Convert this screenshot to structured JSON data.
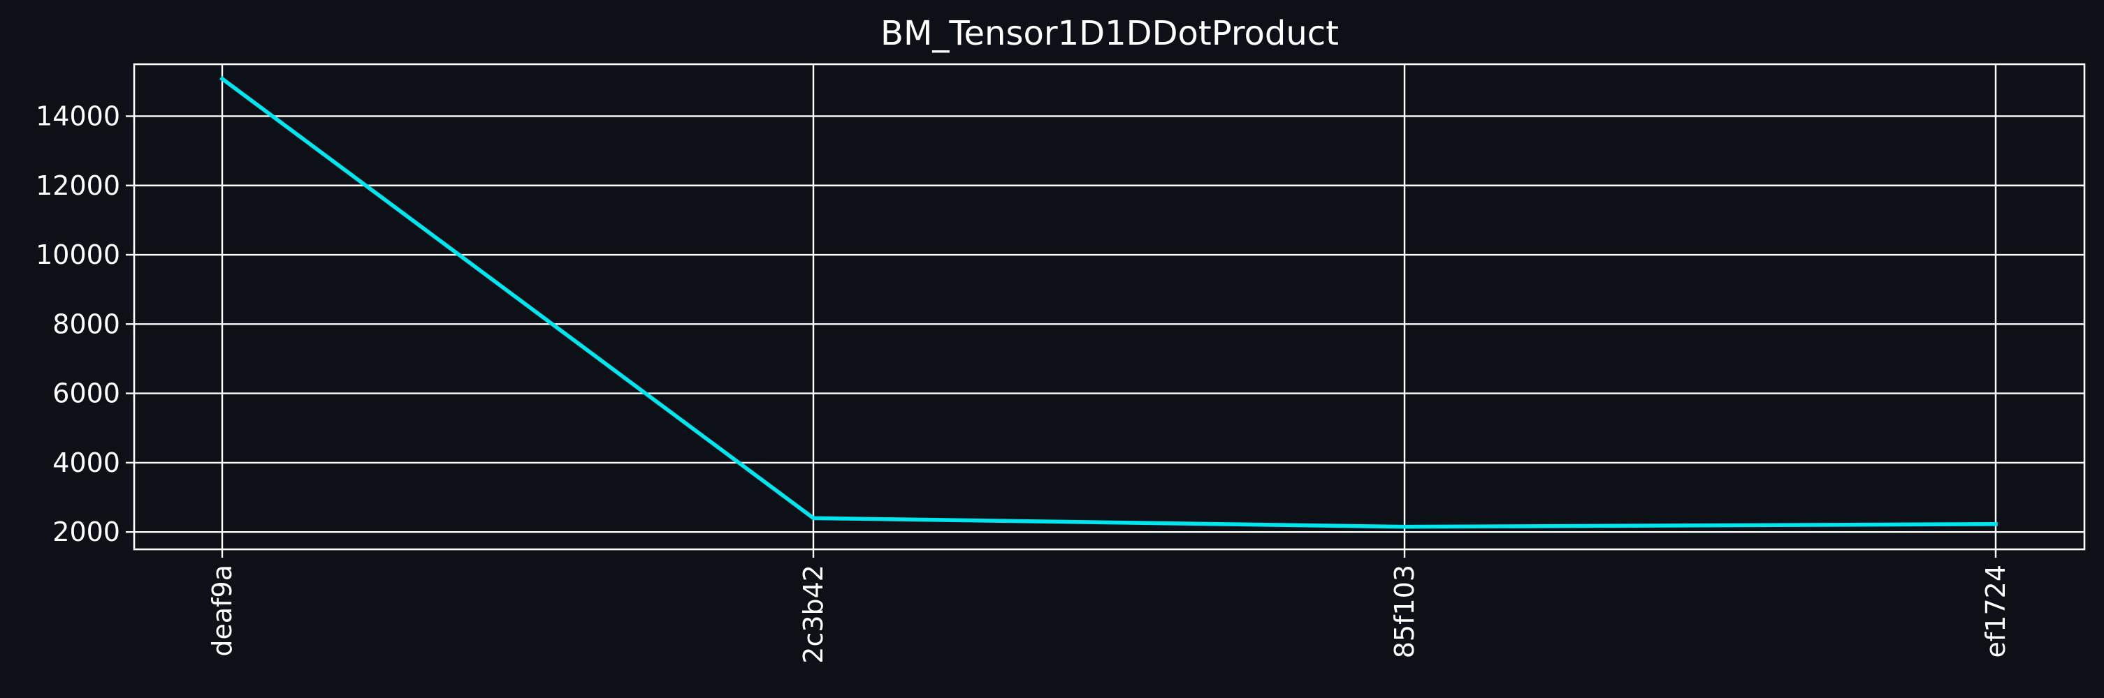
{
  "chart_data": {
    "type": "line",
    "title": "BM_Tensor1D1DDotProduct",
    "xlabel": "",
    "ylabel": "",
    "categories": [
      "deaf9a",
      "2c3b42",
      "85f103",
      "ef1724"
    ],
    "series": [
      {
        "values": [
          15080,
          2400,
          2150,
          2230
        ],
        "color": "#00e5ee"
      }
    ],
    "ylim": [
      1500,
      15500
    ],
    "yticks": [
      2000,
      4000,
      6000,
      8000,
      10000,
      12000,
      14000
    ],
    "grid": true,
    "legend": "none",
    "x_tick_rotation": "vertical",
    "background_color": "#0d1117",
    "foreground_color": "#ffffff"
  }
}
